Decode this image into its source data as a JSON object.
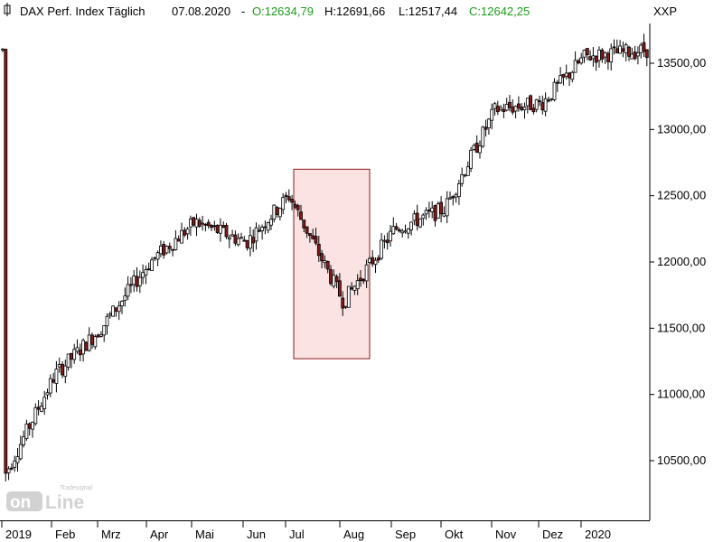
{
  "header": {
    "title": "DAX Perf. Index Täglich",
    "date": "07.08.2020",
    "sep": "-",
    "open": "O:12634,79",
    "high": "H:12691,66",
    "low": "L:12517,44",
    "close": "C:12642,25",
    "symbol": "XXP"
  },
  "watermark": {
    "brand": "Tradesignal",
    "line1": "on",
    "line2": "Line"
  },
  "colors": {
    "up_body": "#ffffff",
    "down_body": "#8b1a1a",
    "wick": "#000000",
    "highlight_fill": "#fbe3e3",
    "highlight_stroke": "#8b1a1a",
    "ohlc_green": "#1a9c1a"
  },
  "chart_data": {
    "type": "candlestick",
    "title": "DAX Perf. Index Täglich",
    "ylim": [
      10050,
      13800
    ],
    "y_ticks": [
      10500,
      11000,
      11500,
      12000,
      12500,
      13000,
      13500
    ],
    "y_tick_labels": [
      "10500,00",
      "11000,00",
      "11500,00",
      "12000,00",
      "12500,00",
      "13000,00",
      "13500,00"
    ],
    "x_labels": [
      "2019",
      "Feb",
      "Mrz",
      "Apr",
      "Mai",
      "Jun",
      "Jul",
      "Aug",
      "Sep",
      "Okt",
      "Nov",
      "Dez",
      "2020"
    ],
    "grid": false,
    "highlight": {
      "from": "Jul",
      "to": "Aug",
      "y_range": [
        11270,
        12700
      ]
    },
    "monthly_path": [
      [
        "2019",
        10400
      ],
      [
        "Feb",
        11150
      ],
      [
        "Mrz",
        11500
      ],
      [
        "Apr",
        12000
      ],
      [
        "Mai",
        12300
      ],
      [
        "Jun",
        12150
      ],
      [
        "Jul",
        12500
      ],
      [
        "Aug",
        11700
      ],
      [
        "Sep",
        12250
      ],
      [
        "Okt",
        12400
      ],
      [
        "Nov",
        13150
      ],
      [
        "Dez",
        13200
      ],
      [
        "2020",
        13550
      ]
    ],
    "last_candle": {
      "open": 12634.79,
      "high": 12691.66,
      "low": 12517.44,
      "close": 12642.25
    }
  }
}
